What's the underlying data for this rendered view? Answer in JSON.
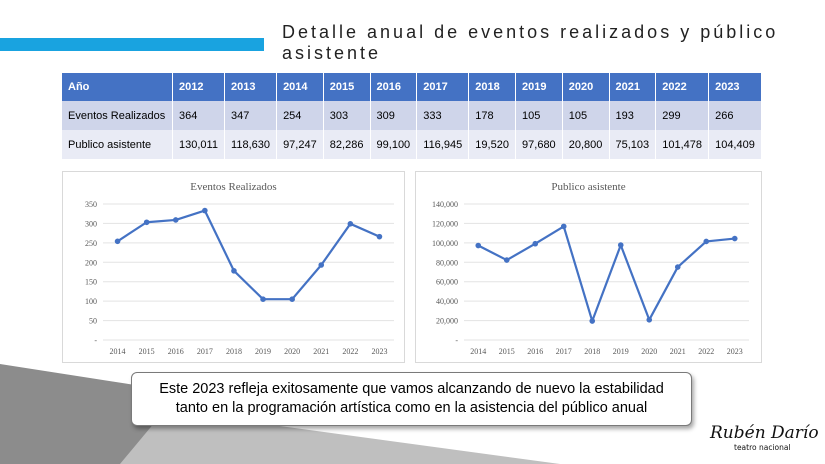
{
  "title": "Detalle anual de eventos realizados y público asistente",
  "table": {
    "header_label": "Año",
    "years": [
      "2012",
      "2013",
      "2014",
      "2015",
      "2016",
      "2017",
      "2018",
      "2019",
      "2020",
      "2021",
      "2022",
      "2023"
    ],
    "rows": [
      {
        "label": "Eventos Realizados",
        "values": [
          "364",
          "347",
          "254",
          "303",
          "309",
          "333",
          "178",
          "105",
          "105",
          "193",
          "299",
          "266"
        ]
      },
      {
        "label": "Publico asistente",
        "values": [
          "130,011",
          "118,630",
          "97,247",
          "82,286",
          "99,100",
          "116,945",
          "19,520",
          "97,680",
          "20,800",
          "75,103",
          "101,478",
          "104,409"
        ]
      }
    ]
  },
  "chart_data": [
    {
      "type": "line",
      "title": "Eventos Realizados",
      "categories": [
        "2014",
        "2015",
        "2016",
        "2017",
        "2018",
        "2019",
        "2020",
        "2021",
        "2022",
        "2023"
      ],
      "values": [
        254,
        303,
        309,
        333,
        178,
        105,
        105,
        193,
        299,
        266
      ],
      "ylim": [
        0,
        350
      ],
      "yticks": [
        0,
        50,
        100,
        150,
        200,
        250,
        300,
        350
      ],
      "ytick_labels": [
        "-",
        "50",
        "100",
        "150",
        "200",
        "250",
        "300",
        "350"
      ],
      "color": "#4472c4",
      "grid": true
    },
    {
      "type": "line",
      "title": "Publico asistente",
      "categories": [
        "2014",
        "2015",
        "2016",
        "2017",
        "2018",
        "2019",
        "2020",
        "2021",
        "2022",
        "2023"
      ],
      "values": [
        97247,
        82286,
        99100,
        116945,
        19520,
        97680,
        20800,
        75103,
        101478,
        104409
      ],
      "ylim": [
        0,
        140000
      ],
      "yticks": [
        0,
        20000,
        40000,
        60000,
        80000,
        100000,
        120000,
        140000
      ],
      "ytick_labels": [
        "-",
        "20,000",
        "40,000",
        "60,000",
        "80,000",
        "100,000",
        "120,000",
        "140,000"
      ],
      "color": "#4472c4",
      "grid": true
    }
  ],
  "callout": {
    "line1": "Este 2023 refleja exitosamente que vamos alcanzando de nuevo la estabilidad",
    "line2": "tanto en la programación artística como en la asistencia del público anual"
  },
  "logo": {
    "script": "Rubén Darío",
    "subtitle": "teatro nacional"
  },
  "colors": {
    "accent": "#19a3e0",
    "table_header": "#4472c4",
    "row1": "#cfd5ea",
    "row2": "#e9ebf5",
    "footer_dark": "#7f7f7f",
    "footer_light": "#bfbfbf"
  }
}
